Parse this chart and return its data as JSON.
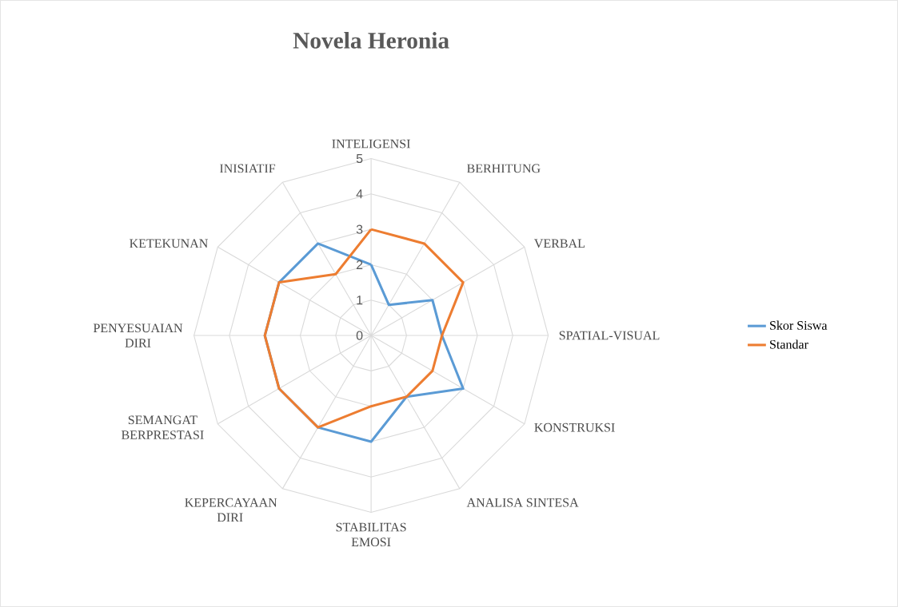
{
  "chart_data": {
    "type": "radar",
    "title": "Novela Heronia",
    "categories": [
      "INTELIGENSI",
      "BERHITUNG",
      "VERBAL",
      "SPATIAL-VISUAL",
      "KONSTRUKSI",
      "ANALISA SINTESA",
      "STABILITAS EMOSI",
      "KEPERCAYAAN DIRI",
      "SEMANGAT BERPRESTASI",
      "PENYESUAIAN DIRI",
      "KETEKUNAN",
      "INISIATIF"
    ],
    "series": [
      {
        "name": "Skor Siswa",
        "color": "#5b9bd5",
        "values": [
          2,
          1,
          2,
          2,
          3,
          2,
          3,
          3,
          3,
          3,
          3,
          3
        ]
      },
      {
        "name": "Standar",
        "color": "#ed7d31",
        "values": [
          3,
          3,
          3,
          2,
          2,
          2,
          2,
          3,
          3,
          3,
          3,
          2
        ]
      }
    ],
    "ylim": [
      0,
      5
    ],
    "yticks": [
      0,
      1,
      2,
      3,
      4,
      5
    ],
    "grid": true,
    "legend": "right"
  }
}
